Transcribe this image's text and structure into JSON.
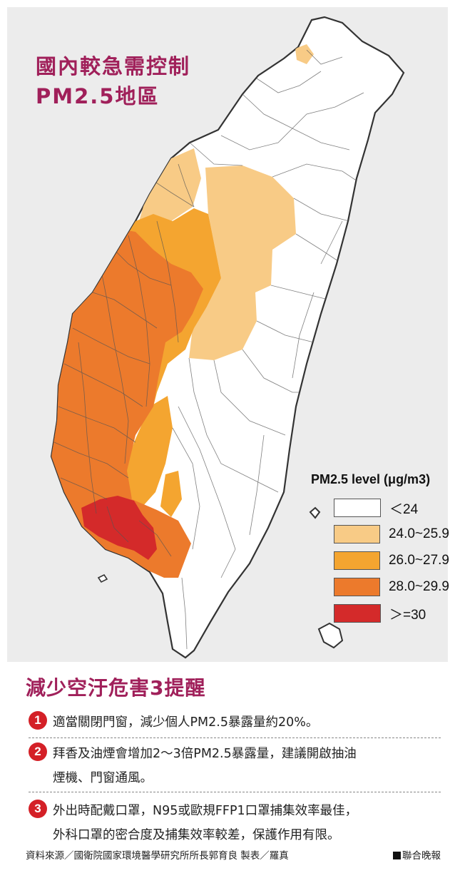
{
  "map": {
    "title_line1": "國內較急需控制",
    "title_line2": "PM2.5地區"
  },
  "legend": {
    "title": "PM2.5 level (μg/m3)",
    "items": [
      {
        "label": "＜24",
        "color": "#ffffff"
      },
      {
        "label": "24.0~25.9",
        "color": "#f8cb86"
      },
      {
        "label": "26.0~27.9",
        "color": "#f4a530"
      },
      {
        "label": "28.0~29.9",
        "color": "#ec7a2c"
      },
      {
        "label": "＞=30",
        "color": "#d42a2a"
      }
    ]
  },
  "tips": {
    "title": "減少空汙危害3提醒",
    "items": [
      {
        "num": "1",
        "text": "適當關閉門窗，減少個人PM2.5暴露量約20%。"
      },
      {
        "num": "2",
        "text": "拜香及油煙會增加2～3倍PM2.5暴露量，建議開啟抽油\n煙機、門窗通風。"
      },
      {
        "num": "3",
        "text": "外出時配戴口罩，N95或歐規FFP1口罩捕集效率最佳，\n外科口罩的密合度及捕集效率較差，保護作用有限。"
      }
    ]
  },
  "footer": {
    "source": "資料來源／國衛院國家環境醫學研究所所長郭育良 製表／羅真",
    "credit": "聯合晚報"
  }
}
